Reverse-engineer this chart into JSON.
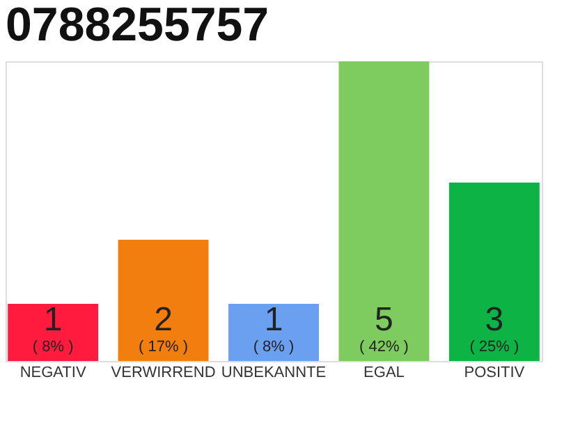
{
  "chart_data": {
    "type": "bar",
    "title": "0788255757",
    "categories": [
      "NEGATIV",
      "VERWIRREND",
      "UNBEKANNTE",
      "EGAL",
      "POSITIV"
    ],
    "values": [
      8,
      17,
      8,
      42,
      25
    ],
    "colors": [
      "#fe1b3e",
      "#f17e0f",
      "#6aa0ef",
      "#7ecb5f",
      "#0db345"
    ],
    "value_labels": [
      "( 8% )",
      "( 17% )",
      "( 8% )",
      "( 42% )",
      "( 25% )"
    ],
    "annotations": [
      "1",
      "2",
      "1",
      "5",
      "3"
    ]
  }
}
